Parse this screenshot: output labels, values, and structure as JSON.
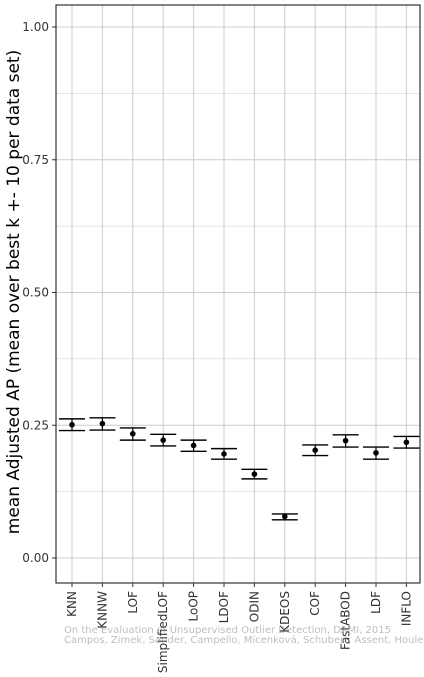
{
  "chart_data": {
    "type": "scatter",
    "title": "",
    "xlabel": "",
    "ylabel": "mean Adjusted AP (mean over best k +- 10 per data set)",
    "ylim": [
      0,
      1.05
    ],
    "y_ticks": [
      0.0,
      0.25,
      0.5,
      0.75,
      1.0
    ],
    "y_tick_labels": [
      "0.00",
      "0.25",
      "0.50",
      "0.75",
      "1.00"
    ],
    "grid": true,
    "categories": [
      "KNN",
      "KNNW",
      "LOF",
      "SimplifiedLOF",
      "LoOP",
      "LDOF",
      "ODIN",
      "KDEOS",
      "COF",
      "FastABOD",
      "LDF",
      "INFLO"
    ],
    "series": [
      {
        "values": [
          0.251,
          0.253,
          0.234,
          0.222,
          0.212,
          0.196,
          0.158,
          0.078,
          0.203,
          0.221,
          0.198,
          0.218
        ],
        "err_low": [
          0.24,
          0.241,
          0.222,
          0.211,
          0.201,
          0.186,
          0.149,
          0.072,
          0.193,
          0.209,
          0.186,
          0.207
        ],
        "err_high": [
          0.262,
          0.264,
          0.245,
          0.233,
          0.222,
          0.206,
          0.167,
          0.083,
          0.213,
          0.232,
          0.209,
          0.229
        ]
      }
    ],
    "colors": {
      "point": "#000000",
      "grid": "#cccccc",
      "border": "#333333"
    }
  },
  "watermark": {
    "line1": "On the Evaluation of Unsupervised Outlier Detection, DAMI, 2015",
    "line2": "Campos, Zimek, Sander, Campello, Micenková, Schubert, Assent, Houle"
  }
}
